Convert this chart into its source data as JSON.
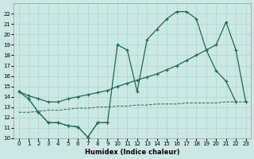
{
  "bg_color": "#cce8e4",
  "grid_color": "#aad4cc",
  "line_color": "#1a6a5a",
  "xlabel": "Humidex (Indice chaleur)",
  "xlim": [
    -0.5,
    23.5
  ],
  "ylim": [
    10,
    23
  ],
  "xticks": [
    0,
    1,
    2,
    3,
    4,
    5,
    6,
    7,
    8,
    9,
    10,
    11,
    12,
    13,
    14,
    15,
    16,
    17,
    18,
    19,
    20,
    21,
    22,
    23
  ],
  "yticks": [
    10,
    11,
    12,
    13,
    14,
    15,
    16,
    17,
    18,
    19,
    20,
    21,
    22
  ],
  "series": [
    {
      "x": [
        0,
        1,
        2,
        3,
        4,
        5,
        6,
        7,
        8,
        9,
        10,
        11,
        12,
        13,
        14,
        15,
        16,
        17,
        18,
        19,
        20,
        21,
        22
      ],
      "y": [
        14.5,
        13.8,
        12.5,
        11.5,
        11.5,
        11.2,
        11.1,
        10.1,
        11.5,
        11.5,
        19.0,
        18.5,
        14.5,
        19.5,
        20.5,
        21.5,
        22.2,
        22.2,
        21.5,
        18.5,
        16.5,
        15.5,
        13.5
      ],
      "ls": "-",
      "marker": true,
      "lw": 0.9
    },
    {
      "x": [
        0,
        1,
        2,
        3,
        4,
        5,
        6,
        7,
        8,
        9,
        10,
        11,
        12,
        13,
        14,
        15,
        16,
        17,
        18,
        19,
        20,
        21,
        22,
        23
      ],
      "y": [
        14.5,
        14.1,
        13.8,
        13.5,
        13.5,
        13.8,
        14.0,
        14.2,
        14.4,
        14.6,
        15.0,
        15.3,
        15.6,
        15.9,
        16.2,
        16.6,
        17.0,
        17.5,
        18.0,
        18.5,
        19.0,
        21.2,
        18.5,
        13.5
      ],
      "ls": "-",
      "marker": true,
      "lw": 0.9
    },
    {
      "x": [
        0,
        1,
        2,
        3,
        4,
        5,
        6,
        7,
        8,
        9,
        10,
        11,
        12,
        13,
        14,
        15,
        16,
        17,
        18,
        19,
        20,
        21,
        22,
        23
      ],
      "y": [
        12.5,
        12.5,
        12.6,
        12.7,
        12.7,
        12.8,
        12.9,
        12.9,
        13.0,
        13.0,
        13.1,
        13.1,
        13.2,
        13.2,
        13.3,
        13.3,
        13.3,
        13.4,
        13.4,
        13.4,
        13.4,
        13.5,
        13.5,
        13.5
      ],
      "ls": "--",
      "marker": false,
      "lw": 0.7
    },
    {
      "x": [
        1,
        2,
        3,
        4,
        5,
        6,
        7,
        8,
        9
      ],
      "y": [
        13.8,
        12.5,
        11.5,
        11.5,
        11.2,
        11.1,
        10.1,
        11.5,
        11.5
      ],
      "ls": "--",
      "marker": true,
      "lw": 0.8
    }
  ]
}
